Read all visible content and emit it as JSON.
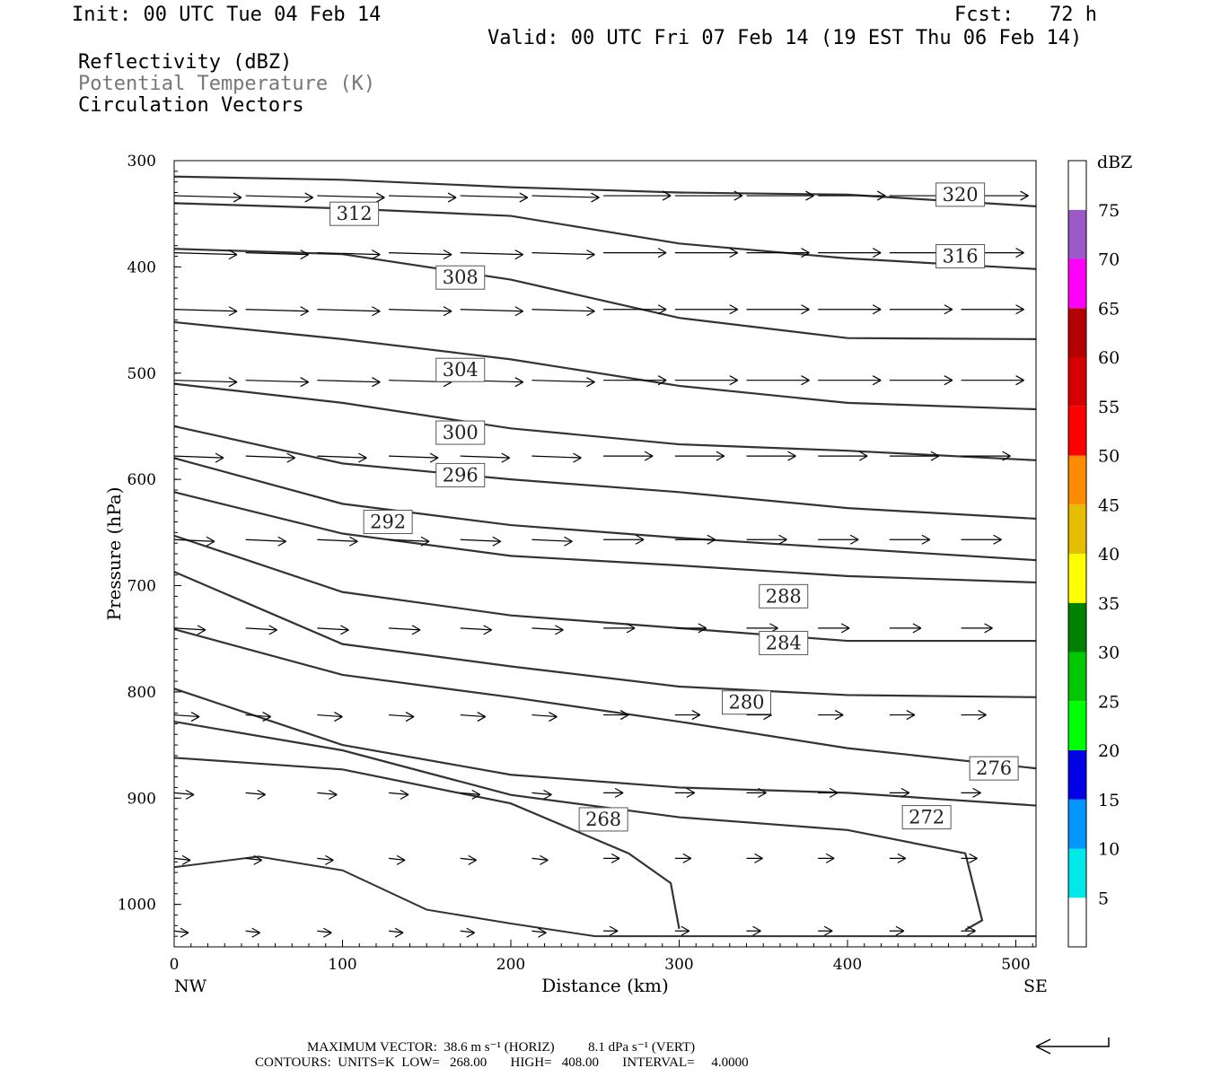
{
  "header": {
    "init": "Init: 00 UTC Tue 04 Feb 14",
    "fcst": "Fcst:   72 h",
    "valid": "Valid: 00 UTC Fri 07 Feb 14 (19 EST Thu 06 Feb 14)",
    "field1": "Reflectivity (dBZ)",
    "field2": "Potential Temperature (K)",
    "field3": "Circulation Vectors"
  },
  "footer": {
    "line1": "MAXIMUM VECTOR:  38.6 m s⁻¹ (HORIZ)          8.1 dPa s⁻¹ (VERT)",
    "line2": "CONTOURS:  UNITS=K  LOW=   268.00       HIGH=   408.00       INTERVAL=     4.0000"
  },
  "colors": {
    "contour": "#333333",
    "scale": [
      "#ffffff",
      "#00e8e8",
      "#0096ff",
      "#0000e6",
      "#00ff00",
      "#00c800",
      "#008200",
      "#ffff00",
      "#e6be00",
      "#ff8c00",
      "#ff0000",
      "#d70000",
      "#b40000",
      "#ff00ff",
      "#9b5ac8",
      "#ffffff"
    ]
  },
  "chart_data": {
    "type": "cross-section",
    "xlabel": "Distance (km)",
    "ylabel": "Pressure (hPa)",
    "xlim": [
      0,
      512
    ],
    "ylim": [
      1040,
      300
    ],
    "x_ticks": [
      "0",
      "100",
      "200",
      "300",
      "400",
      "500"
    ],
    "y_ticks": [
      "300",
      "400",
      "500",
      "600",
      "700",
      "800",
      "900",
      "1000"
    ],
    "left_end_label": "NW",
    "right_end_label": "SE",
    "colorbar": {
      "unit": "dBZ",
      "levels": [
        "5",
        "10",
        "15",
        "20",
        "25",
        "30",
        "35",
        "40",
        "45",
        "50",
        "55",
        "60",
        "65",
        "70",
        "75"
      ]
    },
    "theta_contours": [
      {
        "value": "320",
        "label_at": [
          467,
          332
        ],
        "points": [
          [
            0,
            315
          ],
          [
            100,
            318
          ],
          [
            200,
            325
          ],
          [
            300,
            330
          ],
          [
            400,
            332
          ],
          [
            512,
            343
          ]
        ]
      },
      {
        "value": "316",
        "label_at": [
          467,
          390
        ],
        "points": [
          [
            0,
            340
          ],
          [
            100,
            345
          ],
          [
            200,
            352
          ],
          [
            300,
            378
          ],
          [
            400,
            392
          ],
          [
            512,
            402
          ]
        ]
      },
      {
        "value": "312",
        "label_at": [
          107,
          350
        ],
        "points": [
          [
            0,
            383
          ],
          [
            100,
            388
          ],
          [
            200,
            412
          ],
          [
            300,
            448
          ],
          [
            400,
            467
          ],
          [
            512,
            468
          ]
        ]
      },
      {
        "value": "308",
        "label_at": [
          170,
          410
        ],
        "points": [
          [
            0,
            452
          ],
          [
            100,
            468
          ],
          [
            200,
            487
          ],
          [
            300,
            512
          ],
          [
            400,
            528
          ],
          [
            512,
            534
          ]
        ]
      },
      {
        "value": "304",
        "label_at": [
          170,
          497
        ],
        "points": [
          [
            0,
            510
          ],
          [
            100,
            528
          ],
          [
            200,
            552
          ],
          [
            300,
            567
          ],
          [
            400,
            573
          ],
          [
            512,
            582
          ]
        ]
      },
      {
        "value": "300",
        "label_at": [
          170,
          556
        ],
        "points": [
          [
            0,
            550
          ],
          [
            100,
            585
          ],
          [
            200,
            600
          ],
          [
            300,
            612
          ],
          [
            400,
            627
          ],
          [
            512,
            637
          ]
        ]
      },
      {
        "value": "296",
        "label_at": [
          170,
          596
        ],
        "points": [
          [
            0,
            580
          ],
          [
            100,
            623
          ],
          [
            200,
            643
          ],
          [
            300,
            655
          ],
          [
            400,
            665
          ],
          [
            512,
            676
          ]
        ]
      },
      {
        "value": "292",
        "label_at": [
          127,
          640
        ],
        "points": [
          [
            0,
            612
          ],
          [
            100,
            651
          ],
          [
            200,
            672
          ],
          [
            300,
            681
          ],
          [
            400,
            691
          ],
          [
            512,
            697
          ]
        ]
      },
      {
        "value": "288",
        "label_at": [
          362,
          710
        ],
        "points": [
          [
            0,
            653
          ],
          [
            100,
            706
          ],
          [
            200,
            728
          ],
          [
            300,
            740
          ],
          [
            400,
            752
          ],
          [
            512,
            752
          ]
        ]
      },
      {
        "value": "284",
        "label_at": [
          362,
          754
        ],
        "points": [
          [
            0,
            687
          ],
          [
            100,
            755
          ],
          [
            200,
            776
          ],
          [
            300,
            795
          ],
          [
            400,
            803
          ],
          [
            512,
            805
          ]
        ]
      },
      {
        "value": "280",
        "label_at": [
          340,
          810
        ],
        "points": [
          [
            0,
            741
          ],
          [
            100,
            784
          ],
          [
            200,
            805
          ],
          [
            300,
            828
          ],
          [
            400,
            853
          ],
          [
            512,
            872
          ]
        ]
      },
      {
        "value": "276",
        "label_at": [
          487,
          872
        ],
        "points": [
          [
            0,
            797
          ],
          [
            100,
            850
          ],
          [
            200,
            878
          ],
          [
            300,
            890
          ],
          [
            400,
            895
          ],
          [
            512,
            907
          ]
        ]
      },
      {
        "value": "272",
        "label_at": [
          447,
          918
        ],
        "points": [
          [
            0,
            828
          ],
          [
            100,
            855
          ],
          [
            200,
            897
          ],
          [
            300,
            918
          ],
          [
            400,
            930
          ],
          [
            470,
            952
          ],
          [
            480,
            1015
          ],
          [
            470,
            1024
          ]
        ]
      },
      {
        "value": "268",
        "label_at": [
          255,
          920
        ],
        "points": [
          [
            0,
            862
          ],
          [
            100,
            873
          ],
          [
            200,
            905
          ],
          [
            270,
            952
          ],
          [
            295,
            980
          ],
          [
            300,
            1023
          ]
        ]
      }
    ],
    "terrain_pressure": [
      [
        0,
        965
      ],
      [
        50,
        955
      ],
      [
        100,
        968
      ],
      [
        150,
        1005
      ],
      [
        200,
        1018
      ],
      [
        250,
        1030
      ],
      [
        300,
        1030
      ],
      [
        400,
        1030
      ],
      [
        512,
        1030
      ]
    ],
    "vector_arrow": "horizontal circulation vectors pointing SE (rightward), weaker near surface"
  }
}
